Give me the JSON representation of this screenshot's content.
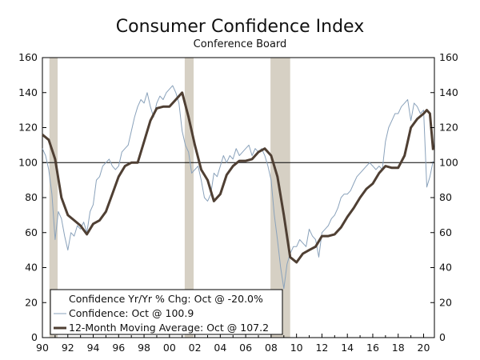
{
  "chart_data": {
    "type": "line",
    "title": "Consumer Confidence Index",
    "subtitle": "Conference Board",
    "xlabel": "",
    "ylabel": "",
    "ylim": [
      0,
      160
    ],
    "yticks": [
      0,
      20,
      40,
      60,
      80,
      100,
      120,
      140,
      160
    ],
    "xlim": [
      1990,
      2020.85
    ],
    "xticks": [
      {
        "year": 1990,
        "label": "90"
      },
      {
        "year": 1992,
        "label": "92"
      },
      {
        "year": 1994,
        "label": "94"
      },
      {
        "year": 1996,
        "label": "96"
      },
      {
        "year": 1998,
        "label": "98"
      },
      {
        "year": 2000,
        "label": "00"
      },
      {
        "year": 2002,
        "label": "02"
      },
      {
        "year": 2004,
        "label": "04"
      },
      {
        "year": 2006,
        "label": "06"
      },
      {
        "year": 2008,
        "label": "08"
      },
      {
        "year": 2010,
        "label": "10"
      },
      {
        "year": 2012,
        "label": "12"
      },
      {
        "year": 2014,
        "label": "14"
      },
      {
        "year": 2016,
        "label": "16"
      },
      {
        "year": 2018,
        "label": "18"
      },
      {
        "year": 2020,
        "label": "20"
      }
    ],
    "reference_line": 100,
    "recessions": [
      [
        1990.55,
        1991.2
      ],
      [
        2001.2,
        2001.9
      ],
      [
        2007.95,
        2009.5
      ]
    ],
    "legend": {
      "placement": "bottom-left",
      "entries": [
        "Confidence Yr/Yr % Chg: Oct @ -20.0%",
        "Confidence: Oct @ 100.9",
        "12-Month Moving Average: Oct @ 107.2"
      ]
    },
    "series": [
      {
        "name": "Confidence: Oct @ 100.9",
        "color": "#8aa2bb",
        "x": [
          1990.0,
          1990.25,
          1990.5,
          1990.75,
          1991.0,
          1991.25,
          1991.5,
          1991.75,
          1992.0,
          1992.25,
          1992.5,
          1992.75,
          1993.0,
          1993.25,
          1993.5,
          1993.75,
          1994.0,
          1994.25,
          1994.5,
          1994.75,
          1995.0,
          1995.25,
          1995.5,
          1995.75,
          1996.0,
          1996.25,
          1996.5,
          1996.75,
          1997.0,
          1997.25,
          1997.5,
          1997.75,
          1998.0,
          1998.25,
          1998.5,
          1998.75,
          1999.0,
          1999.25,
          1999.5,
          1999.75,
          2000.0,
          2000.25,
          2000.5,
          2000.75,
          2001.0,
          2001.25,
          2001.5,
          2001.75,
          2002.0,
          2002.25,
          2002.5,
          2002.75,
          2003.0,
          2003.25,
          2003.5,
          2003.75,
          2004.0,
          2004.25,
          2004.5,
          2004.75,
          2005.0,
          2005.25,
          2005.5,
          2005.75,
          2006.0,
          2006.25,
          2006.5,
          2006.75,
          2007.0,
          2007.25,
          2007.5,
          2007.75,
          2008.0,
          2008.25,
          2008.5,
          2008.75,
          2009.0,
          2009.25,
          2009.5,
          2009.75,
          2010.0,
          2010.25,
          2010.5,
          2010.75,
          2011.0,
          2011.25,
          2011.5,
          2011.75,
          2012.0,
          2012.25,
          2012.5,
          2012.75,
          2013.0,
          2013.25,
          2013.5,
          2013.75,
          2014.0,
          2014.25,
          2014.5,
          2014.75,
          2015.0,
          2015.25,
          2015.5,
          2015.75,
          2016.0,
          2016.25,
          2016.5,
          2016.75,
          2017.0,
          2017.25,
          2017.5,
          2017.75,
          2018.0,
          2018.25,
          2018.5,
          2018.75,
          2019.0,
          2019.25,
          2019.5,
          2019.75,
          2020.0,
          2020.25,
          2020.5,
          2020.75
        ],
        "values": [
          108,
          104,
          96,
          82,
          56,
          72,
          68,
          58,
          50,
          60,
          58,
          64,
          62,
          66,
          60,
          72,
          76,
          90,
          92,
          98,
          100,
          102,
          98,
          96,
          98,
          106,
          108,
          110,
          118,
          126,
          132,
          136,
          134,
          140,
          132,
          126,
          134,
          138,
          136,
          140,
          142,
          144,
          140,
          134,
          118,
          110,
          106,
          94,
          96,
          98,
          90,
          80,
          78,
          82,
          94,
          92,
          98,
          104,
          100,
          104,
          102,
          108,
          104,
          106,
          108,
          110,
          104,
          108,
          106,
          108,
          104,
          98,
          90,
          70,
          56,
          40,
          28,
          42,
          48,
          52,
          52,
          56,
          54,
          52,
          62,
          58,
          56,
          46,
          60,
          62,
          64,
          68,
          70,
          74,
          80,
          82,
          82,
          84,
          88,
          92,
          94,
          96,
          98,
          100,
          98,
          96,
          98,
          96,
          112,
          120,
          124,
          128,
          128,
          132,
          134,
          136,
          124,
          134,
          132,
          128,
          130,
          86,
          92,
          100.9
        ]
      },
      {
        "name": "12-Month Moving Average: Oct @ 107.2",
        "color": "#4f3f33",
        "x": [
          1990.0,
          1990.5,
          1991.0,
          1991.5,
          1992.0,
          1992.5,
          1993.0,
          1993.5,
          1994.0,
          1994.5,
          1995.0,
          1995.5,
          1996.0,
          1996.5,
          1997.0,
          1997.5,
          1998.0,
          1998.5,
          1999.0,
          1999.5,
          2000.0,
          2000.5,
          2001.0,
          2001.5,
          2002.0,
          2002.5,
          2003.0,
          2003.5,
          2004.0,
          2004.5,
          2005.0,
          2005.5,
          2006.0,
          2006.5,
          2007.0,
          2007.5,
          2008.0,
          2008.5,
          2009.0,
          2009.5,
          2010.0,
          2010.5,
          2011.0,
          2011.5,
          2012.0,
          2012.5,
          2013.0,
          2013.5,
          2014.0,
          2014.5,
          2015.0,
          2015.5,
          2016.0,
          2016.5,
          2017.0,
          2017.5,
          2018.0,
          2018.5,
          2019.0,
          2019.5,
          2020.0,
          2020.25,
          2020.5,
          2020.75
        ],
        "values": [
          116,
          113,
          102,
          80,
          70,
          67,
          64,
          59,
          65,
          67,
          72,
          82,
          92,
          98,
          100,
          100,
          112,
          124,
          131,
          132,
          132,
          136,
          140,
          126,
          110,
          96,
          90,
          78,
          82,
          93,
          98,
          101,
          101,
          102,
          106,
          108,
          104,
          92,
          70,
          46,
          43,
          48,
          50,
          52,
          58,
          58,
          59,
          63,
          69,
          74,
          80,
          85,
          88,
          94,
          98,
          97,
          97,
          104,
          120,
          125,
          128,
          130,
          128,
          107.2
        ]
      }
    ]
  }
}
